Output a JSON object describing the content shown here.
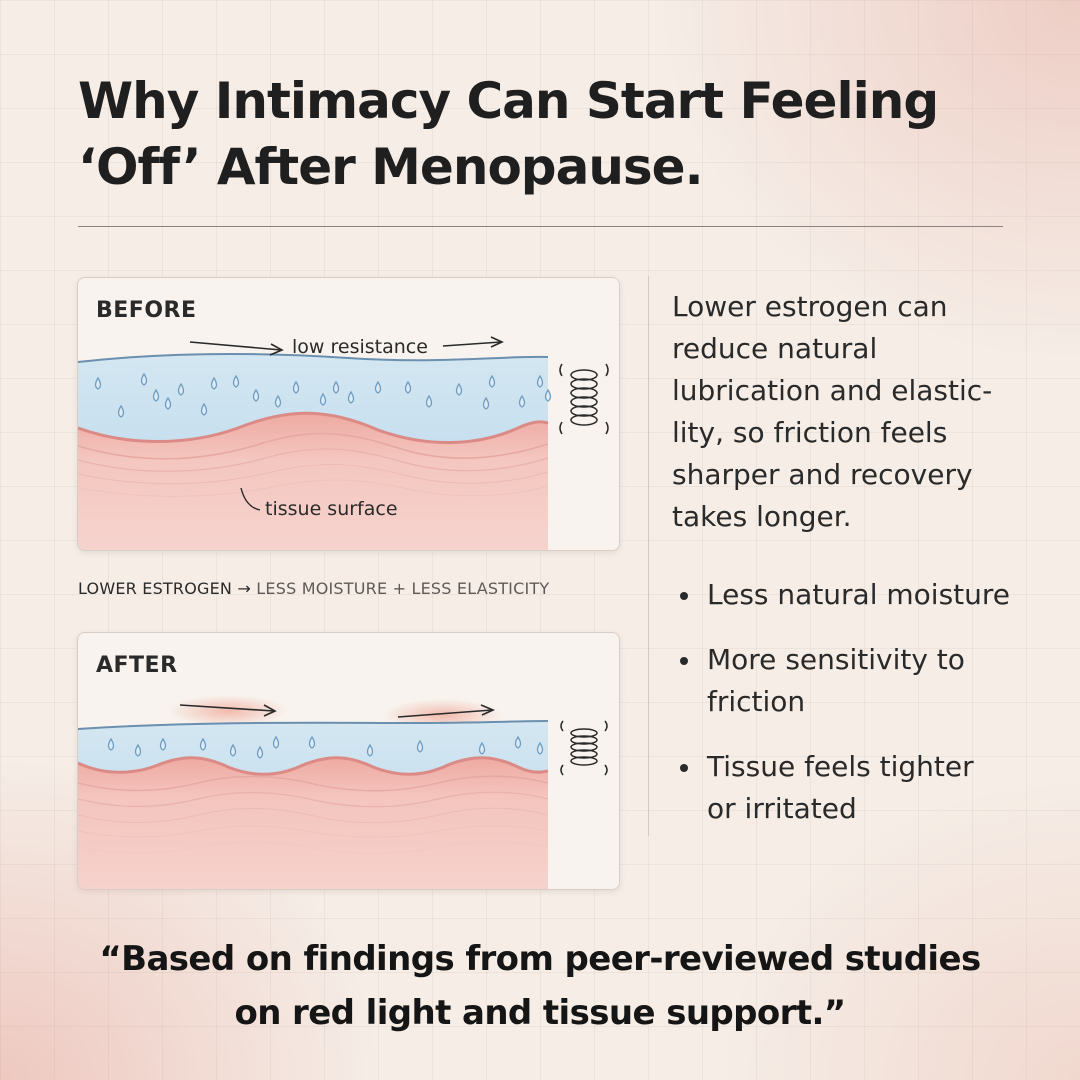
{
  "title": {
    "line1": "Why Intimacy Can Start Feeling",
    "line2": "‘Off’ After Menopause."
  },
  "before_panel": {
    "label": "BEFORE",
    "arrow_label": "low resistance",
    "tissue_label": "tissue surface"
  },
  "flow_label": {
    "cause": "LOWER ESTROGEN →",
    "effect": "LESS MOISTURE + LESS ELASTICITY"
  },
  "after_panel": {
    "label": "AFTER"
  },
  "description": {
    "lines": [
      "Lower estrogen can",
      "reduce natural",
      "lubrication and elastic-",
      "lity, so friction feels",
      "sharper and recovery",
      "takes longer."
    ]
  },
  "bullets": [
    {
      "lines": [
        "Less natural moisture"
      ]
    },
    {
      "lines": [
        "More sensitivity to",
        "friction"
      ]
    },
    {
      "lines": [
        "Tissue feels tighter",
        "or irritated"
      ]
    }
  ],
  "quote": {
    "line1": "“Based on findings from peer-reviewed studies",
    "line2": "on red light and tissue support.”"
  },
  "colors": {
    "moisture": "#bfdced",
    "tissue": "#f3c9c2",
    "tissue_edge": "#dd8a86",
    "water_line": "#6b8fae"
  },
  "icons": [
    "spring-icon",
    "droplet-icon",
    "arrow-right-icon"
  ]
}
